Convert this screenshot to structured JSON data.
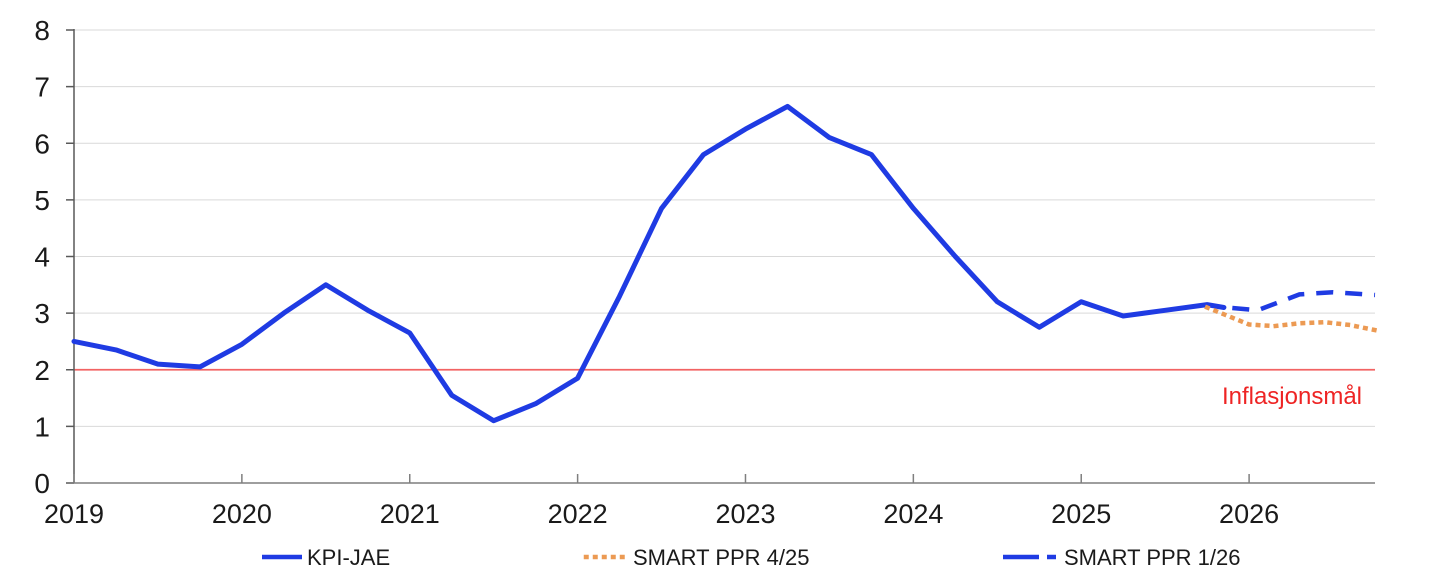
{
  "chart_data": {
    "type": "line",
    "title": "",
    "xlabel": "",
    "ylabel": "",
    "xlim": [
      2019,
      2026.75
    ],
    "ylim": [
      0,
      8
    ],
    "x_ticks": [
      2019,
      2020,
      2021,
      2022,
      2023,
      2024,
      2025,
      2026
    ],
    "y_ticks": [
      0,
      1,
      2,
      3,
      4,
      5,
      6,
      7,
      8
    ],
    "grid": "horizontal",
    "legend_position": "bottom",
    "background_color": "#ffffff",
    "grid_color": "#d9d9d9",
    "y_axis_color": "#595959",
    "x_axis_color": "#7f7f7f",
    "tick_label_color": "#1a1a1a",
    "reference_line": {
      "value": 2,
      "label": "Inflasjonsmål",
      "line_color": "#f26363",
      "label_color": "#ee2424"
    },
    "series": [
      {
        "name": "KPI-JAE",
        "line_style": "solid",
        "color": "#1f3be3",
        "x": [
          2019.0,
          2019.25,
          2019.5,
          2019.75,
          2020.0,
          2020.25,
          2020.5,
          2020.75,
          2021.0,
          2021.25,
          2021.5,
          2021.75,
          2022.0,
          2022.25,
          2022.5,
          2022.75,
          2023.0,
          2023.25,
          2023.5,
          2023.75,
          2024.0,
          2024.25,
          2024.5,
          2024.75,
          2025.0,
          2025.25,
          2025.5,
          2025.75,
          2025.85
        ],
        "values": [
          2.5,
          2.35,
          2.1,
          2.05,
          2.45,
          3.0,
          3.5,
          3.05,
          2.65,
          1.55,
          1.1,
          1.4,
          1.85,
          3.3,
          4.85,
          5.8,
          6.25,
          6.65,
          6.1,
          5.8,
          4.85,
          4.0,
          3.2,
          2.75,
          3.2,
          2.95,
          3.05,
          3.15,
          3.1
        ]
      },
      {
        "name": "SMART PPR 4/25",
        "line_style": "dotted",
        "color": "#ec9a53",
        "x": [
          2025.75,
          2025.9,
          2026.0,
          2026.15,
          2026.3,
          2026.45,
          2026.6,
          2026.75
        ],
        "values": [
          3.1,
          2.92,
          2.8,
          2.77,
          2.82,
          2.84,
          2.79,
          2.7
        ]
      },
      {
        "name": "SMART PPR 1/26",
        "line_style": "dashed",
        "color": "#1f3be3",
        "x": [
          2025.9,
          2026.05,
          2026.3,
          2026.5,
          2026.75
        ],
        "values": [
          3.09,
          3.05,
          3.33,
          3.37,
          3.32
        ]
      }
    ]
  }
}
